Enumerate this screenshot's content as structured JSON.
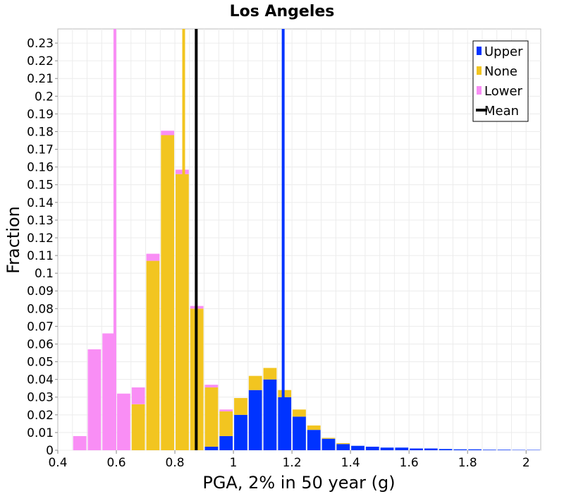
{
  "chart_data": {
    "type": "bar",
    "stacked": true,
    "title": "Los Angeles",
    "xlabel": "PGA, 2% in 50 year (g)",
    "ylabel": "Fraction",
    "xlim": [
      0.4,
      2.05
    ],
    "ylim": [
      0,
      0.238
    ],
    "x_ticks": [
      "0.4",
      "0.6",
      "0.8",
      "1",
      "1.2",
      "1.4",
      "1.6",
      "1.8",
      "2"
    ],
    "y_ticks": [
      "0",
      "0.01",
      "0.02",
      "0.03",
      "0.04",
      "0.05",
      "0.06",
      "0.07",
      "0.08",
      "0.09",
      "0.1",
      "0.11",
      "0.12",
      "0.13",
      "0.14",
      "0.15",
      "0.16",
      "0.17",
      "0.18",
      "0.19",
      "0.2",
      "0.21",
      "0.22",
      "0.23"
    ],
    "grid": true,
    "legend_position": "top-right",
    "bin_width": 0.05,
    "bins_start": [
      0.45,
      0.5,
      0.55,
      0.6,
      0.65,
      0.7,
      0.75,
      0.8,
      0.85,
      0.9,
      0.95,
      1.0,
      1.05,
      1.1,
      1.15,
      1.2,
      1.25,
      1.3,
      1.35,
      1.4,
      1.45,
      1.5,
      1.55,
      1.6,
      1.65,
      1.7,
      1.75,
      1.8,
      1.85,
      1.9,
      1.95,
      2.0
    ],
    "series": [
      {
        "name": "Upper",
        "color": "#0033ff",
        "values": [
          0,
          0,
          0,
          0,
          0,
          0,
          0,
          0,
          0,
          0.002,
          0.008,
          0.02,
          0.034,
          0.04,
          0.03,
          0.019,
          0.0115,
          0.0065,
          0.0035,
          0.0025,
          0.002,
          0.0015,
          0.0015,
          0.001,
          0.001,
          0.0007,
          0.0005,
          0.0005,
          0.0003,
          0.0003,
          0.0002,
          0.0002
        ]
      },
      {
        "name": "None",
        "color": "#f2c520",
        "values": [
          0,
          0,
          0,
          0,
          0.026,
          0.107,
          0.178,
          0.156,
          0.08,
          0.0335,
          0.014,
          0.0095,
          0.008,
          0.0065,
          0.004,
          0.004,
          0.0025,
          0.0005,
          0.0005,
          0,
          0,
          0,
          0,
          0,
          0,
          0,
          0,
          0,
          0,
          0,
          0,
          0
        ]
      },
      {
        "name": "Lower",
        "color": "#f98ef5",
        "values": [
          0.008,
          0.057,
          0.066,
          0.032,
          0.0095,
          0.004,
          0.0025,
          0.0025,
          0.0015,
          0.0015,
          0.001,
          0,
          0,
          0,
          0,
          0,
          0,
          0,
          0,
          0,
          0,
          0,
          0,
          0,
          0,
          0,
          0,
          0,
          0,
          0,
          0,
          0
        ]
      }
    ],
    "reference_lines": [
      {
        "name": "Lower",
        "x": 0.595,
        "color": "#f98ef5"
      },
      {
        "name": "None",
        "x": 0.83,
        "color": "#f2c520"
      },
      {
        "name": "Mean",
        "x": 0.873,
        "color": "#000000"
      },
      {
        "name": "Upper",
        "x": 1.17,
        "color": "#0033ff"
      }
    ],
    "legend": [
      {
        "label": "Upper",
        "color": "#0033ff",
        "kind": "box"
      },
      {
        "label": "None",
        "color": "#f2c520",
        "kind": "box"
      },
      {
        "label": "Lower",
        "color": "#f98ef5",
        "kind": "box"
      },
      {
        "label": "Mean",
        "color": "#000000",
        "kind": "line"
      }
    ]
  }
}
